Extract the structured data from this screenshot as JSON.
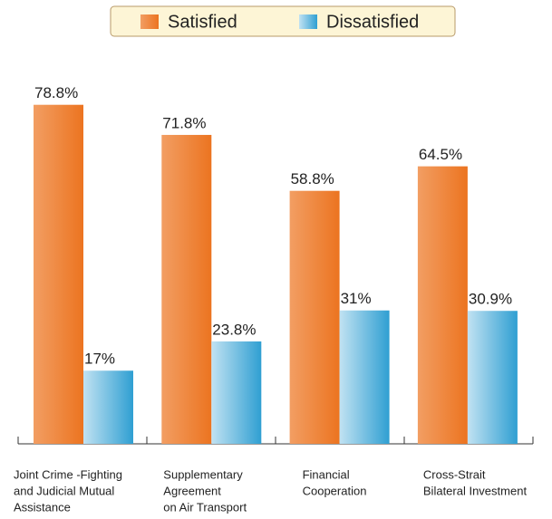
{
  "chart_data": {
    "type": "bar",
    "categories": [
      [
        "Joint Crime -Fighting",
        "and Judicial Mutual",
        "Assistance"
      ],
      [
        "Supplementary",
        "Agreement",
        "on  Air Transport"
      ],
      [
        "Financial",
        "Cooperation"
      ],
      [
        "Cross-Strait",
        "Bilateral Investment"
      ]
    ],
    "series": [
      {
        "name": "Satisfied",
        "color": "#ec7420",
        "values": [
          78.8,
          71.8,
          58.8,
          64.5
        ],
        "value_labels": [
          "78.8%",
          "71.8%",
          "58.8%",
          "64.5%"
        ]
      },
      {
        "name": "Dissatisfied",
        "color": "#2f9fd2",
        "values": [
          17,
          23.8,
          31,
          30.9
        ],
        "value_labels": [
          "17%",
          "23.8%",
          "31%",
          "30.9%"
        ]
      }
    ],
    "legend": "top"
  }
}
